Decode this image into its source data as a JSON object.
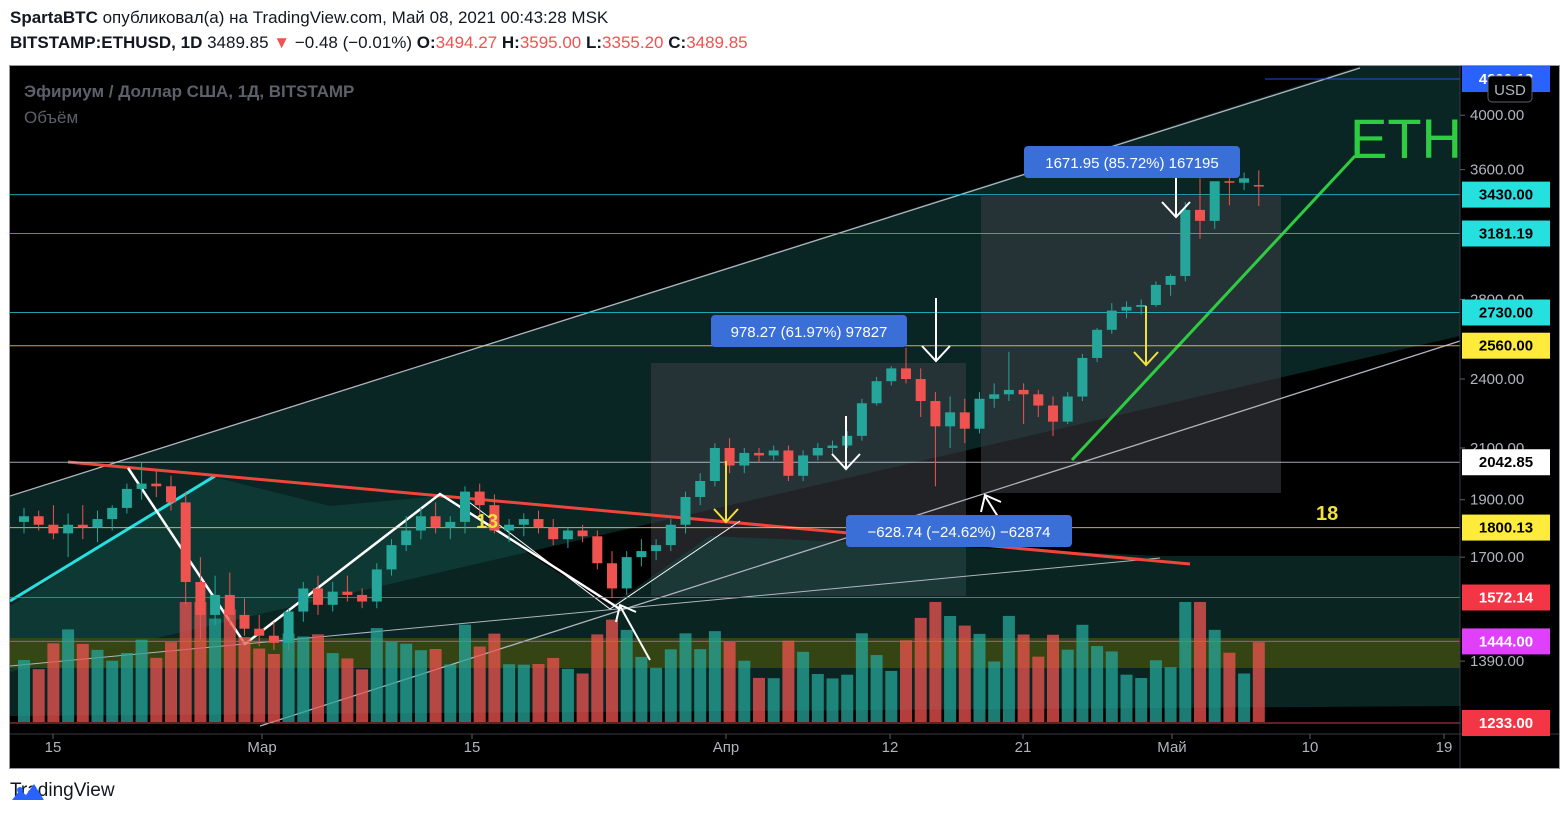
{
  "header": {
    "author": "SpartaBTC",
    "published_text": "опубликовал(а) на TradingView.com, Май 08, 2021 00:43:28 MSK",
    "symbol": "BITSTAMP:ETHUSD, 1D",
    "last_price": "3489.85",
    "change": "−0.48 (−0.01%)",
    "o_label": "O:",
    "o_value": "3494.27",
    "h_label": "H:",
    "h_value": "3595.00",
    "l_label": "L:",
    "l_value": "3355.20",
    "c_label": "C:",
    "c_value": "3489.85"
  },
  "legend": {
    "title": "Эфириум / Доллар США, 1Д, BITSTAMP",
    "volume_label": "Объём"
  },
  "currency_button": "USD",
  "watermark": "ETH",
  "counters": [
    "13",
    "18"
  ],
  "measure_boxes": [
    {
      "text": "1671.95 (85.72%) 167195"
    },
    {
      "text": "978.27 (61.97%) 97827"
    },
    {
      "text": "−628.74 (−24.62%) −62874"
    }
  ],
  "footer": {
    "brand": "TradingView"
  },
  "colors": {
    "up": "#26a69a",
    "down": "#ef5350",
    "background": "#000000",
    "trendline_red": "#f0453a",
    "support_green": "#2ecc40",
    "cyan_line": "#26e0e0",
    "yellow_marker": "#f0e040",
    "label_blue": "#2962ff"
  },
  "chart_data": {
    "type": "candlestick",
    "symbol": "ETHUSD",
    "interval": "1D",
    "y_scale": "log",
    "ylim": [
      1233,
      4400
    ],
    "y_ticks": [
      "4000.00",
      "3600.00",
      "2800.00",
      "2400.00",
      "2100.00",
      "1900.00",
      "1700.00",
      "1390.00"
    ],
    "x_ticks": [
      "15",
      "Мар",
      "15",
      "Апр",
      "12",
      "21",
      "Май",
      "10",
      "19"
    ],
    "price_labels": [
      {
        "value": "4290.18",
        "style": "blue"
      },
      {
        "value": "3430.00",
        "style": "cyan"
      },
      {
        "value": "3181.19",
        "style": "cyan"
      },
      {
        "value": "2730.00",
        "style": "cyan"
      },
      {
        "value": "2560.00",
        "style": "yellow"
      },
      {
        "value": "2042.85",
        "style": "white"
      },
      {
        "value": "1800.13",
        "style": "yellow"
      },
      {
        "value": "1572.14",
        "style": "red"
      },
      {
        "value": "1444.00",
        "style": "magenta"
      },
      {
        "value": "1233.00",
        "style": "red"
      }
    ],
    "candles": [
      [
        1820,
        1870,
        1780,
        1840
      ],
      [
        1840,
        1860,
        1790,
        1810
      ],
      [
        1810,
        1880,
        1760,
        1780
      ],
      [
        1780,
        1850,
        1700,
        1810
      ],
      [
        1810,
        1880,
        1760,
        1800
      ],
      [
        1800,
        1860,
        1750,
        1830
      ],
      [
        1830,
        1880,
        1790,
        1870
      ],
      [
        1870,
        1960,
        1850,
        1940
      ],
      [
        1940,
        2040,
        1900,
        1960
      ],
      [
        1960,
        2010,
        1910,
        1950
      ],
      [
        1950,
        1990,
        1860,
        1890
      ],
      [
        1890,
        1930,
        1550,
        1620
      ],
      [
        1620,
        1700,
        1450,
        1520
      ],
      [
        1520,
        1640,
        1490,
        1580
      ],
      [
        1580,
        1650,
        1490,
        1520
      ],
      [
        1520,
        1570,
        1460,
        1480
      ],
      [
        1480,
        1520,
        1430,
        1460
      ],
      [
        1460,
        1500,
        1420,
        1440
      ],
      [
        1440,
        1540,
        1420,
        1530
      ],
      [
        1530,
        1620,
        1500,
        1600
      ],
      [
        1600,
        1640,
        1520,
        1550
      ],
      [
        1550,
        1620,
        1530,
        1590
      ],
      [
        1590,
        1640,
        1560,
        1580
      ],
      [
        1580,
        1600,
        1540,
        1560
      ],
      [
        1560,
        1680,
        1540,
        1660
      ],
      [
        1660,
        1760,
        1640,
        1740
      ],
      [
        1740,
        1840,
        1720,
        1790
      ],
      [
        1790,
        1870,
        1760,
        1840
      ],
      [
        1840,
        1890,
        1780,
        1800
      ],
      [
        1800,
        1840,
        1760,
        1820
      ],
      [
        1820,
        1950,
        1780,
        1930
      ],
      [
        1930,
        1960,
        1840,
        1880
      ],
      [
        1880,
        1920,
        1780,
        1790
      ],
      [
        1790,
        1830,
        1750,
        1810
      ],
      [
        1810,
        1850,
        1770,
        1830
      ],
      [
        1830,
        1860,
        1780,
        1800
      ],
      [
        1800,
        1830,
        1740,
        1760
      ],
      [
        1760,
        1800,
        1730,
        1790
      ],
      [
        1790,
        1810,
        1750,
        1770
      ],
      [
        1770,
        1790,
        1660,
        1680
      ],
      [
        1680,
        1720,
        1570,
        1600
      ],
      [
        1600,
        1720,
        1580,
        1700
      ],
      [
        1700,
        1760,
        1670,
        1720
      ],
      [
        1720,
        1760,
        1690,
        1740
      ],
      [
        1740,
        1830,
        1720,
        1810
      ],
      [
        1810,
        1930,
        1780,
        1910
      ],
      [
        1910,
        2000,
        1880,
        1970
      ],
      [
        1970,
        2120,
        1950,
        2100
      ],
      [
        2100,
        2140,
        2000,
        2030
      ],
      [
        2030,
        2100,
        2000,
        2080
      ],
      [
        2080,
        2100,
        2040,
        2070
      ],
      [
        2070,
        2110,
        2050,
        2090
      ],
      [
        2090,
        2110,
        1970,
        1990
      ],
      [
        1990,
        2090,
        1970,
        2070
      ],
      [
        2070,
        2120,
        2050,
        2100
      ],
      [
        2100,
        2130,
        2070,
        2110
      ],
      [
        2110,
        2170,
        2100,
        2150
      ],
      [
        2150,
        2310,
        2130,
        2290
      ],
      [
        2290,
        2410,
        2280,
        2390
      ],
      [
        2390,
        2460,
        2370,
        2450
      ],
      [
        2450,
        2550,
        2380,
        2400
      ],
      [
        2400,
        2450,
        2230,
        2300
      ],
      [
        2300,
        2340,
        1950,
        2190
      ],
      [
        2190,
        2320,
        2100,
        2250
      ],
      [
        2250,
        2310,
        2120,
        2180
      ],
      [
        2180,
        2340,
        2160,
        2310
      ],
      [
        2310,
        2380,
        2270,
        2330
      ],
      [
        2330,
        2530,
        2300,
        2350
      ],
      [
        2350,
        2380,
        2200,
        2330
      ],
      [
        2330,
        2350,
        2230,
        2280
      ],
      [
        2280,
        2320,
        2150,
        2210
      ],
      [
        2210,
        2340,
        2200,
        2320
      ],
      [
        2320,
        2520,
        2300,
        2500
      ],
      [
        2500,
        2650,
        2480,
        2640
      ],
      [
        2640,
        2780,
        2620,
        2740
      ],
      [
        2740,
        2790,
        2700,
        2760
      ],
      [
        2760,
        2800,
        2720,
        2770
      ],
      [
        2770,
        2900,
        2760,
        2880
      ],
      [
        2880,
        2940,
        2820,
        2930
      ],
      [
        2930,
        3380,
        2900,
        3330
      ],
      [
        3330,
        3540,
        3150,
        3260
      ],
      [
        3260,
        3500,
        3210,
        3520
      ],
      [
        3520,
        3560,
        3360,
        3510
      ],
      [
        3510,
        3580,
        3460,
        3540
      ],
      [
        3494.27,
        3595,
        3355.2,
        3489.85
      ]
    ]
  }
}
